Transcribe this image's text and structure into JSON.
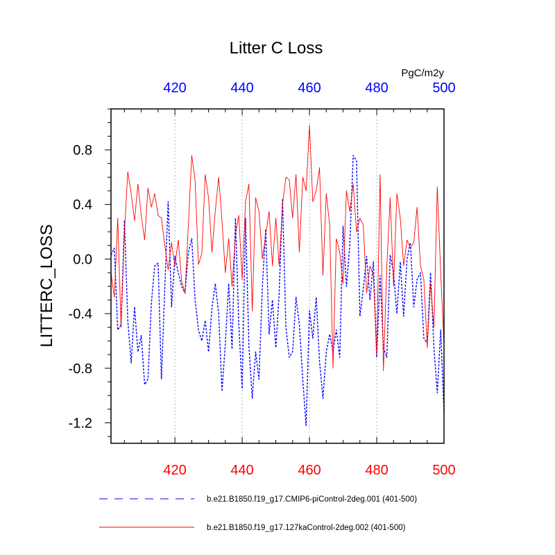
{
  "chart_data": {
    "type": "line",
    "title": "Litter C Loss",
    "units": "PgC/m2y",
    "ylabel": "LITTERC_LOSS",
    "xlabel": "",
    "xlim": [
      401,
      500
    ],
    "ylim": [
      -1.35,
      1.1
    ],
    "xticks": [
      420,
      440,
      460,
      480,
      500
    ],
    "xtick_labels": [
      "420",
      "440",
      "460",
      "480",
      "500"
    ],
    "yticks": [
      -1.2,
      -0.8,
      -0.4,
      0.0,
      0.4,
      0.8
    ],
    "ytick_labels": [
      "-1.2",
      "-0.8",
      "-0.4",
      "0.0",
      "0.4",
      "0.8"
    ],
    "colors": {
      "bottom_axis_labels": "#ff0000",
      "top_axis_labels": "#0000ff",
      "grid": "#b4b4b4",
      "series_cmip6": "#0000ff",
      "series_127ka": "#ff0000"
    },
    "series": [
      {
        "name": "b.e21.B1850.f19_g17.CMIP6-piControl-2deg.001 (401-500)",
        "style": "dashed",
        "color": "#0000ff",
        "x": [
          401,
          402,
          403,
          404,
          405,
          406,
          407,
          408,
          409,
          410,
          411,
          412,
          413,
          414,
          415,
          416,
          417,
          418,
          419,
          420,
          421,
          422,
          423,
          424,
          425,
          426,
          427,
          428,
          429,
          430,
          431,
          432,
          433,
          434,
          435,
          436,
          437,
          438,
          439,
          440,
          441,
          442,
          443,
          444,
          445,
          446,
          447,
          448,
          449,
          450,
          451,
          452,
          453,
          454,
          455,
          456,
          457,
          458,
          459,
          460,
          461,
          462,
          463,
          464,
          465,
          466,
          467,
          468,
          469,
          470,
          471,
          472,
          473,
          474,
          475,
          476,
          477,
          478,
          479,
          480,
          481,
          482,
          483,
          484,
          485,
          486,
          487,
          488,
          489,
          490,
          491,
          492,
          493,
          494,
          495,
          496,
          497,
          498,
          499,
          500
        ],
        "values": [
          0.03,
          0.08,
          -0.52,
          -0.48,
          0.28,
          -0.45,
          -0.76,
          -0.35,
          -0.68,
          -0.56,
          -0.92,
          -0.88,
          -0.32,
          -0.05,
          -0.03,
          -0.88,
          -0.2,
          0.42,
          -0.35,
          0.02,
          -0.1,
          -0.2,
          -0.25,
          0.05,
          0.15,
          -0.3,
          -0.52,
          -0.6,
          -0.45,
          -0.68,
          -0.36,
          -0.18,
          -0.4,
          -0.97,
          -0.62,
          -0.18,
          -0.66,
          0.3,
          -0.48,
          -0.95,
          0.3,
          -0.64,
          -1.02,
          -0.68,
          -0.88,
          -0.2,
          0.22,
          -0.55,
          -0.3,
          -0.65,
          -0.25,
          0.44,
          -0.5,
          -0.72,
          -0.68,
          -0.28,
          -0.48,
          -0.88,
          -1.22,
          -0.38,
          -0.58,
          -0.28,
          -0.75,
          -1.02,
          -0.68,
          -0.55,
          -0.68,
          -0.52,
          -0.72,
          0.24,
          -0.2,
          0.1,
          0.76,
          0.72,
          -0.42,
          -0.22,
          0.02,
          -0.3,
          -0.02,
          -0.72,
          -0.12,
          -0.65,
          -0.72,
          0.03,
          -0.1,
          -0.4,
          -0.02,
          -0.42,
          0.0,
          0.12,
          -0.35,
          -0.15,
          -0.1,
          -0.58,
          -0.62,
          -0.1,
          -0.65,
          -0.98,
          -0.52,
          -1.12
        ]
      },
      {
        "name": "b.e21.B1850.f19_g17.127kaControl-2deg.002 (401-500)",
        "style": "solid",
        "color": "#ff0000",
        "x": [
          401,
          402,
          403,
          404,
          405,
          406,
          407,
          408,
          409,
          410,
          411,
          412,
          413,
          414,
          415,
          416,
          417,
          418,
          419,
          420,
          421,
          422,
          423,
          424,
          425,
          426,
          427,
          428,
          429,
          430,
          431,
          432,
          433,
          434,
          435,
          436,
          437,
          438,
          439,
          440,
          441,
          442,
          443,
          444,
          445,
          446,
          447,
          448,
          449,
          450,
          451,
          452,
          453,
          454,
          455,
          456,
          457,
          458,
          459,
          460,
          461,
          462,
          463,
          464,
          465,
          466,
          467,
          468,
          469,
          470,
          471,
          472,
          473,
          474,
          475,
          476,
          477,
          478,
          479,
          480,
          481,
          482,
          483,
          484,
          485,
          486,
          487,
          488,
          489,
          490,
          491,
          492,
          493,
          494,
          495,
          496,
          497,
          498,
          499,
          500
        ],
        "values": [
          -0.1,
          -0.28,
          0.3,
          -0.5,
          0.2,
          0.64,
          0.48,
          0.28,
          0.55,
          0.32,
          0.14,
          0.52,
          0.38,
          0.48,
          0.32,
          0.3,
          0.1,
          -0.08,
          0.12,
          -0.05,
          0.14,
          -0.16,
          -0.25,
          0.25,
          0.76,
          0.58,
          -0.04,
          0.04,
          0.62,
          0.45,
          0.05,
          0.35,
          0.6,
          0.28,
          -0.1,
          0.15,
          -0.2,
          0.18,
          0.32,
          -0.15,
          0.42,
          0.55,
          -0.38,
          0.45,
          0.35,
          0.0,
          0.18,
          0.35,
          -0.05,
          0.3,
          -0.05,
          0.4,
          0.6,
          0.58,
          0.3,
          0.62,
          0.05,
          0.6,
          0.5,
          0.98,
          0.42,
          0.5,
          0.67,
          -0.12,
          0.48,
          0.25,
          -0.8,
          0.15,
          0.05,
          -0.18,
          0.5,
          0.35,
          0.55,
          0.2,
          0.3,
          0.25,
          -0.25,
          -0.05,
          -0.12,
          -0.7,
          0.62,
          -0.82,
          -0.05,
          0.45,
          -0.2,
          0.48,
          0.3,
          -0.05,
          0.14,
          0.08,
          0.12,
          0.38,
          -0.05,
          -0.15,
          -0.65,
          -0.18,
          -0.5,
          0.53,
          -0.1,
          -0.62
        ],
        "dashed": false
      }
    ]
  }
}
